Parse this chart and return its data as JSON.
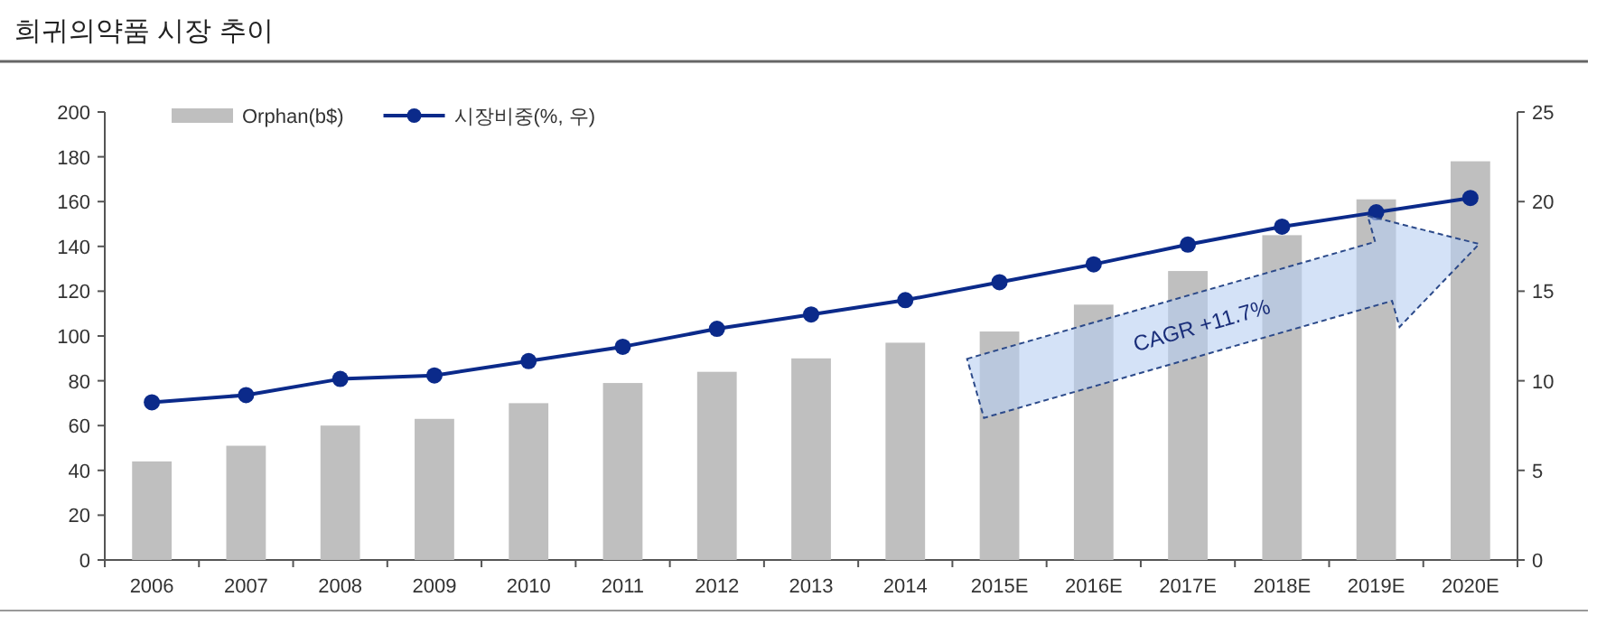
{
  "chart_data": {
    "type": "bar",
    "title": "희귀의약품 시장 추이",
    "categories": [
      "2006",
      "2007",
      "2008",
      "2009",
      "2010",
      "2011",
      "2012",
      "2013",
      "2014",
      "2015E",
      "2016E",
      "2017E",
      "2018E",
      "2019E",
      "2020E"
    ],
    "series": [
      {
        "name": "Orphan(b$)",
        "color": "#bfbfbf",
        "values": [
          44,
          51,
          60,
          63,
          70,
          79,
          84,
          90,
          97,
          102,
          114,
          129,
          145,
          161,
          178
        ]
      },
      {
        "name": "시장비중(%, 우)",
        "type": "line",
        "axis": "y2",
        "color": "#0b2a8a",
        "values": [
          8.8,
          9.2,
          10.1,
          10.3,
          11.1,
          11.9,
          12.9,
          13.7,
          14.5,
          15.5,
          16.5,
          17.6,
          18.6,
          19.4,
          20.2
        ]
      }
    ],
    "ylim": [
      0,
      200
    ],
    "yticks": [
      0,
      20,
      40,
      60,
      80,
      100,
      120,
      140,
      160,
      180,
      200
    ],
    "y2lim": [
      0,
      25
    ],
    "y2ticks": [
      0,
      5,
      10,
      15,
      20,
      25
    ],
    "legend": "top",
    "grid": false,
    "marker": "circle",
    "line_style": "solid",
    "annotations": [
      "CAGR +11.7%"
    ]
  }
}
